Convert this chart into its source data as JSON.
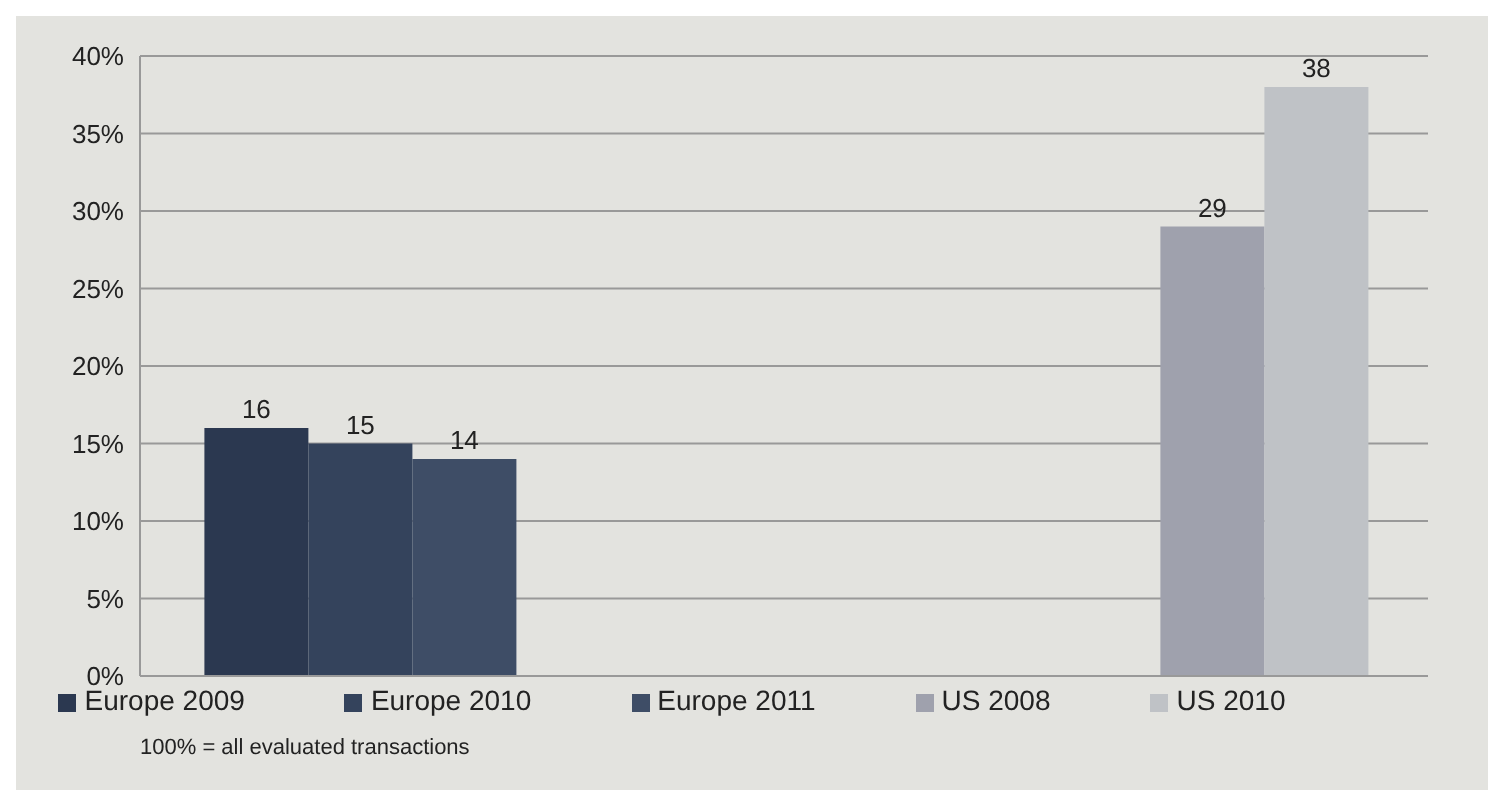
{
  "chart_data": {
    "type": "bar",
    "categories": [
      null,
      null
    ],
    "series": [
      {
        "name": "Europe 2009",
        "color": "#2b3850",
        "values": [
          16,
          null
        ]
      },
      {
        "name": "Europe 2010",
        "color": "#34435c",
        "values": [
          15,
          null
        ]
      },
      {
        "name": "Europe 2011",
        "color": "#3e4d66",
        "values": [
          14,
          null
        ]
      },
      {
        "name": "US 2008",
        "color": "#9fa1ad",
        "values": [
          null,
          29
        ]
      },
      {
        "name": "US 2010",
        "color": "#bfc2c6",
        "values": [
          null,
          38
        ]
      }
    ],
    "ylim": [
      0,
      40
    ],
    "yticks": [
      {
        "value": 0,
        "label": "0%"
      },
      {
        "value": 5,
        "label": "5%"
      },
      {
        "value": 10,
        "label": "10%"
      },
      {
        "value": 15,
        "label": "15%"
      },
      {
        "value": 20,
        "label": "20%"
      },
      {
        "value": 25,
        "label": "25%"
      },
      {
        "value": 30,
        "label": "30%"
      },
      {
        "value": 35,
        "label": "35%"
      },
      {
        "value": 40,
        "label": "40%"
      }
    ],
    "grid": "y",
    "legend": "bottom",
    "data_labels": true,
    "annotations": [
      "100% = all evaluated transactions"
    ]
  }
}
